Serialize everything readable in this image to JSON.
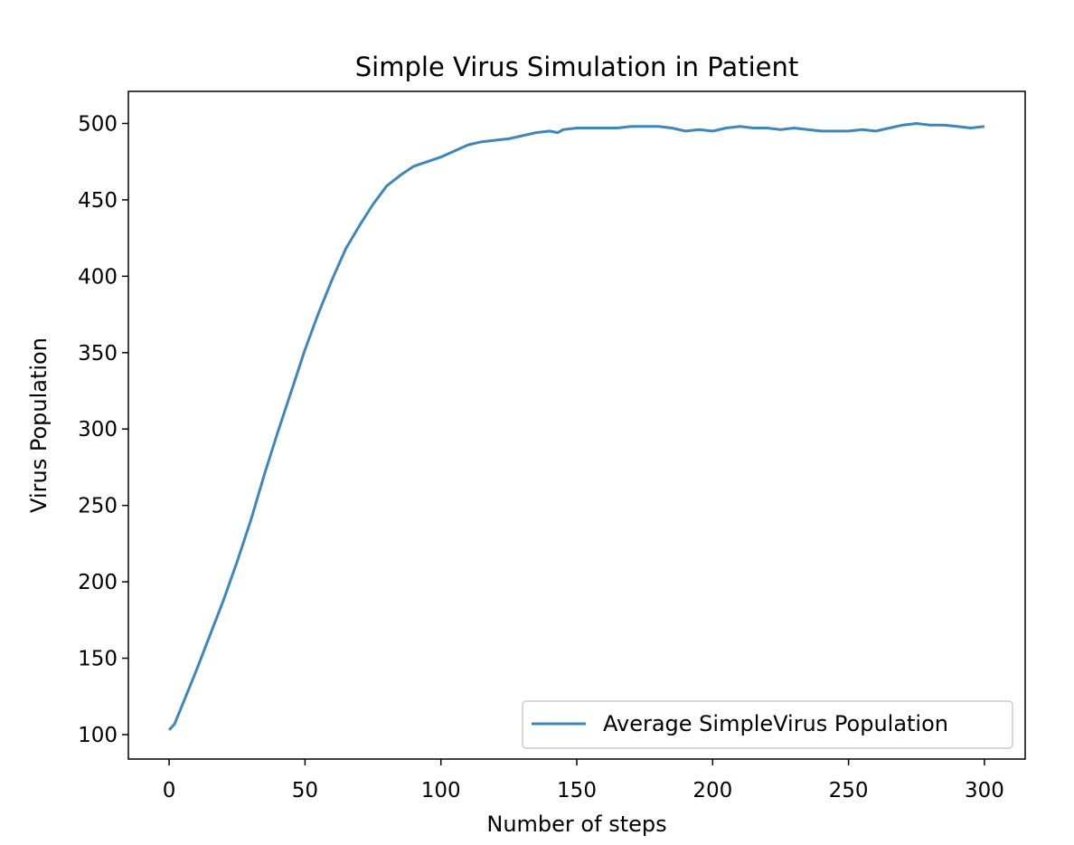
{
  "chart_data": {
    "type": "line",
    "title": "Simple Virus Simulation in Patient",
    "xlabel": "Number of steps",
    "ylabel": "Virus Population",
    "xlim": [
      -15,
      315
    ],
    "ylim": [
      84,
      521
    ],
    "xticks": [
      0,
      50,
      100,
      150,
      200,
      250,
      300
    ],
    "yticks": [
      100,
      150,
      200,
      250,
      300,
      350,
      400,
      450,
      500
    ],
    "grid": false,
    "legend_position": "lower-right",
    "series": [
      {
        "name": "Average SimpleVirus Population",
        "color": "#3e87bd",
        "x": [
          0,
          2,
          5,
          10,
          15,
          20,
          25,
          30,
          35,
          40,
          45,
          50,
          55,
          60,
          65,
          70,
          75,
          80,
          85,
          90,
          95,
          100,
          105,
          110,
          115,
          120,
          125,
          130,
          135,
          140,
          143,
          145,
          150,
          155,
          160,
          165,
          170,
          175,
          180,
          185,
          190,
          195,
          200,
          205,
          210,
          215,
          220,
          225,
          230,
          235,
          240,
          245,
          250,
          255,
          260,
          265,
          270,
          275,
          280,
          285,
          290,
          295,
          300
        ],
        "values": [
          103,
          107,
          120,
          142,
          165,
          188,
          213,
          240,
          270,
          298,
          325,
          352,
          376,
          398,
          418,
          433,
          447,
          459,
          466,
          472,
          475,
          478,
          482,
          486,
          488,
          489,
          490,
          492,
          494,
          495,
          494,
          496,
          497,
          497,
          497,
          497,
          498,
          498,
          498,
          497,
          495,
          496,
          495,
          497,
          498,
          497,
          497,
          496,
          497,
          496,
          495,
          495,
          495,
          496,
          495,
          497,
          499,
          500,
          499,
          499,
          498,
          497,
          498
        ]
      }
    ]
  }
}
